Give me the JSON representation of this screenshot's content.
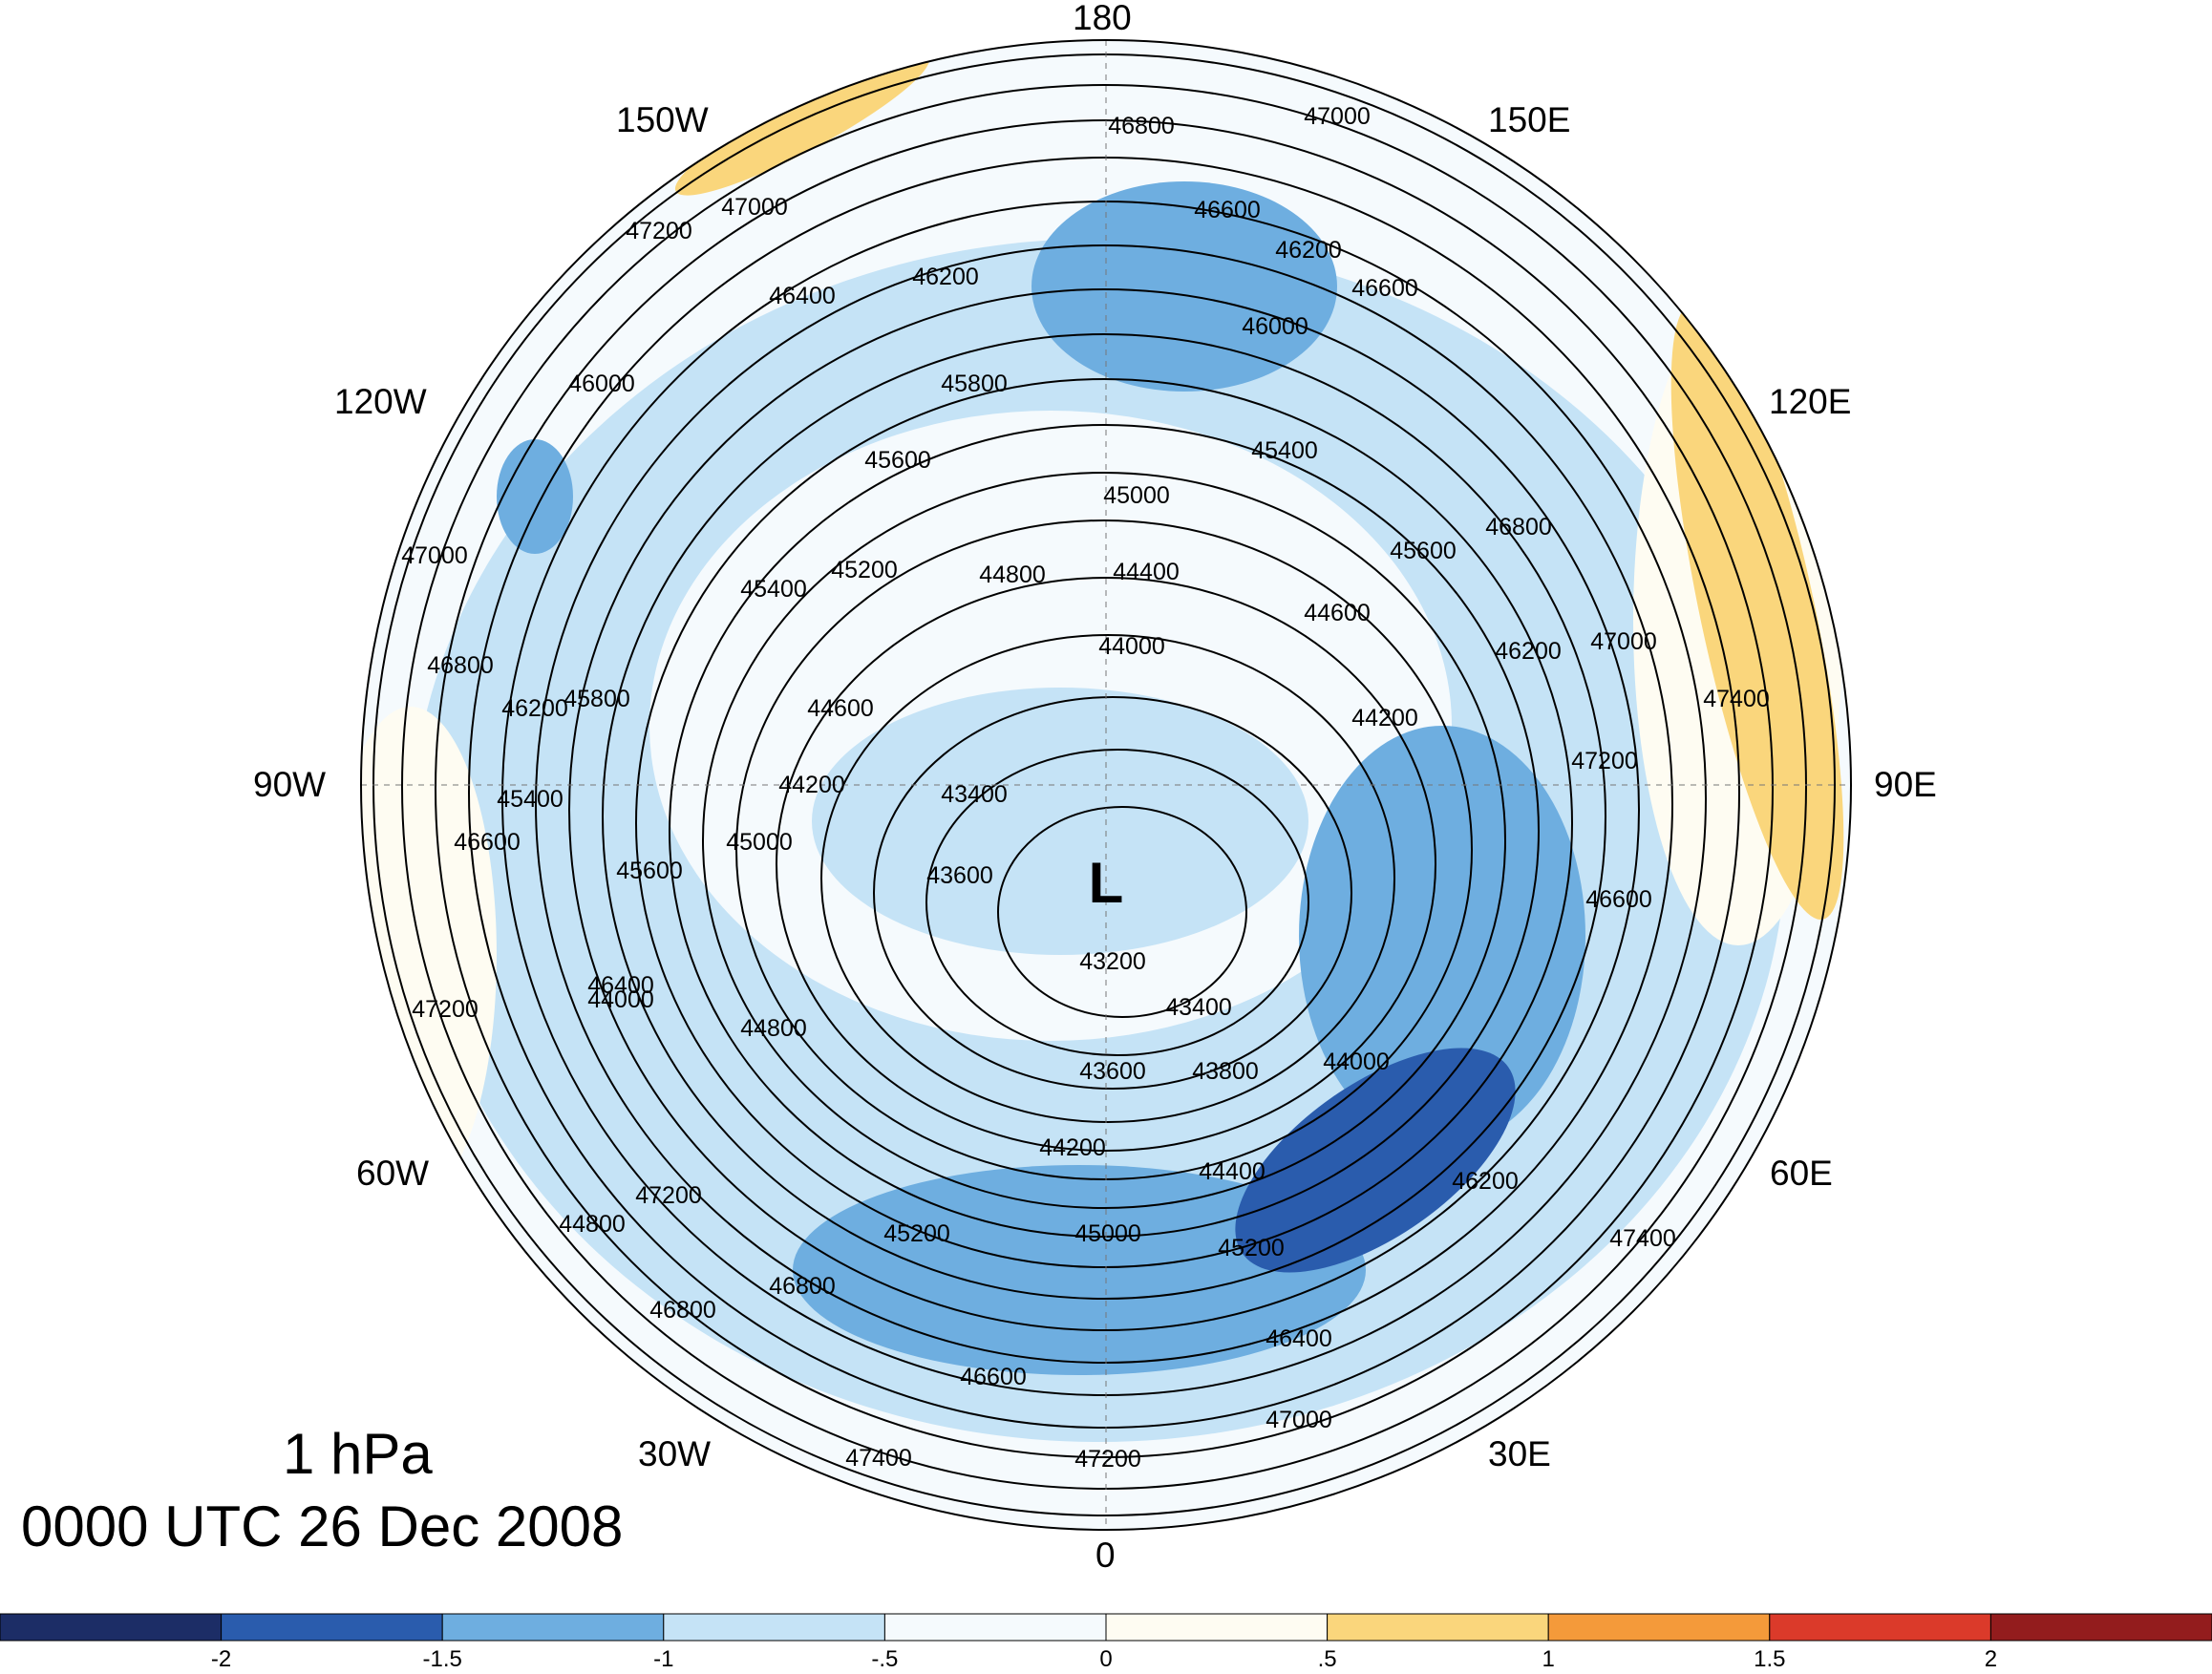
{
  "map": {
    "level": "1 hPa",
    "valid_time": "0000 UTC 26 Dec 2008",
    "low_marker": "L",
    "longitude_labels": {
      "lon_180": "180",
      "lon_150E": "150E",
      "lon_120E": "120E",
      "lon_90E": "90E",
      "lon_60E": "60E",
      "lon_30E": "30E",
      "lon_0": "0",
      "lon_30W": "30W",
      "lon_60W": "60W",
      "lon_90W": "90W",
      "lon_120W": "120W",
      "lon_150W": "150W"
    },
    "contour_labels": [
      "47000",
      "46800",
      "47200",
      "47000",
      "46400",
      "46200",
      "46600",
      "46000",
      "45800",
      "45600",
      "45400",
      "45200",
      "44800",
      "44400",
      "44000",
      "44600",
      "44200",
      "43400",
      "43600",
      "43200",
      "43400",
      "43600",
      "43800",
      "44200",
      "44400",
      "45000",
      "45200",
      "46400",
      "46600",
      "46800",
      "47000",
      "47200",
      "47400",
      "46200",
      "45600",
      "46000",
      "45400",
      "46600",
      "46800",
      "47000",
      "47200",
      "46600",
      "45000",
      "44600",
      "44200",
      "46200",
      "47400",
      "44000",
      "44800",
      "45000",
      "46200",
      "45800",
      "45600",
      "46800",
      "47000",
      "47200",
      "46600",
      "45400",
      "44000",
      "46400",
      "45200",
      "44800",
      "47200",
      "46800",
      "46200",
      "47400"
    ],
    "contour_interval": 200,
    "shading": {
      "colors": {
        "neg_2_5": "#1c2d66",
        "neg_2": "#2a5cad",
        "neg_1_5": "#6eaee0",
        "neg_1": "#c5e3f6",
        "neg_0_5": "#f5fafd",
        "pos_0": "#fefcf2",
        "pos_0_5": "#fad67c",
        "pos_1": "#f49a3a",
        "pos_1_5": "#db3a2a",
        "pos_2": "#931c1d"
      }
    }
  },
  "colorbar": {
    "tick_labels": [
      "-2",
      "-1.5",
      "-1",
      "-.5",
      "0",
      ".5",
      "1",
      "1.5",
      "2"
    ],
    "colors": [
      "#1c2d66",
      "#2a5cad",
      "#6eaee0",
      "#c5e3f6",
      "#f5fafd",
      "#fefcf2",
      "#fad67c",
      "#f49a3a",
      "#db3a2a",
      "#931c1d"
    ]
  }
}
